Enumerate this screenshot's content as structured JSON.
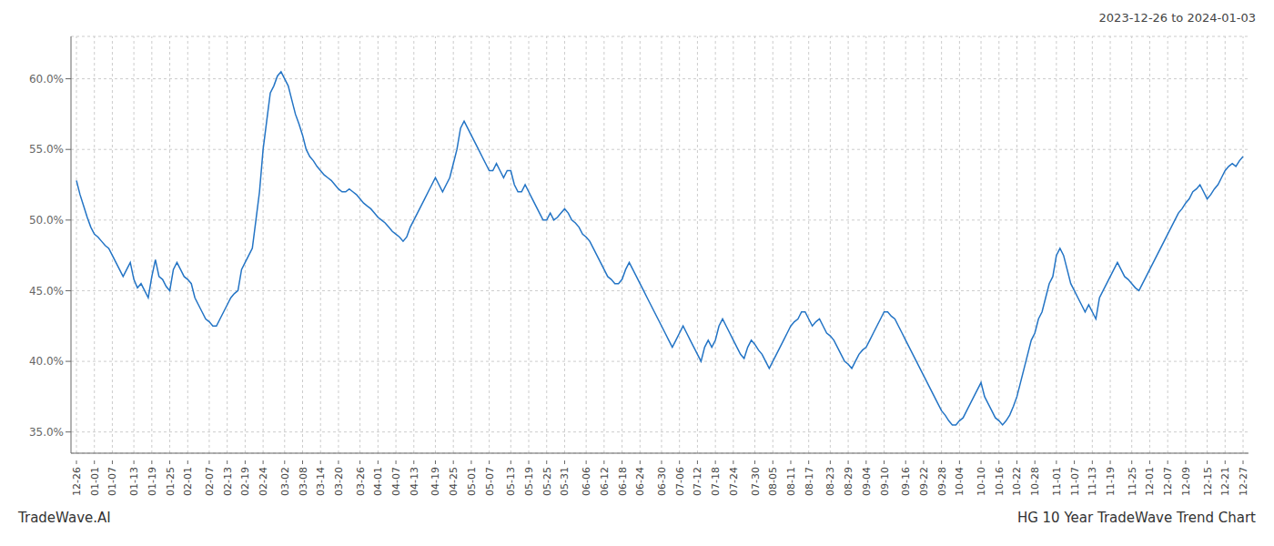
{
  "chart_data": {
    "type": "line",
    "title": "HG 10 Year TradeWave Trend Chart",
    "subtitle": "2023-12-26 to 2024-01-03",
    "annotations": [
      "TradeWave.AI"
    ],
    "color": "#2374c5",
    "grid": true,
    "ylim": [
      33.5,
      63.0
    ],
    "yticks": [
      {
        "value": 35.0,
        "label": "35.0%"
      },
      {
        "value": 40.0,
        "label": "40.0%"
      },
      {
        "value": 45.0,
        "label": "45.0%"
      },
      {
        "value": 50.0,
        "label": "50.0%"
      },
      {
        "value": 55.0,
        "label": "55.0%"
      },
      {
        "value": 60.0,
        "label": "60.0%"
      }
    ],
    "categories": [
      "12-26",
      null,
      null,
      null,
      null,
      "01-01",
      null,
      null,
      null,
      null,
      "01-07",
      null,
      null,
      null,
      null,
      null,
      "01-13",
      null,
      null,
      null,
      null,
      "01-19",
      null,
      null,
      null,
      null,
      "01-25",
      null,
      null,
      null,
      null,
      "02-01",
      null,
      null,
      null,
      null,
      null,
      "02-07",
      null,
      null,
      null,
      null,
      "02-13",
      null,
      null,
      null,
      null,
      "02-19",
      null,
      null,
      null,
      null,
      "02-24",
      null,
      null,
      null,
      null,
      null,
      "03-02",
      null,
      null,
      null,
      null,
      "03-08",
      null,
      null,
      null,
      null,
      "03-14",
      null,
      null,
      null,
      null,
      "03-20",
      null,
      null,
      null,
      null,
      null,
      "03-26",
      null,
      null,
      null,
      null,
      "04-01",
      null,
      null,
      null,
      null,
      "04-07",
      null,
      null,
      null,
      null,
      "04-13",
      null,
      null,
      null,
      null,
      null,
      "04-19",
      null,
      null,
      null,
      null,
      "04-25",
      null,
      null,
      null,
      null,
      "05-01",
      null,
      null,
      null,
      null,
      "05-07",
      null,
      null,
      null,
      null,
      null,
      "05-13",
      null,
      null,
      null,
      null,
      "05-19",
      null,
      null,
      null,
      null,
      "05-25",
      null,
      null,
      null,
      null,
      "05-31",
      null,
      null,
      null,
      null,
      null,
      "06-06",
      null,
      null,
      null,
      null,
      "06-12",
      null,
      null,
      null,
      null,
      "06-18",
      null,
      null,
      null,
      null,
      "06-24",
      null,
      null,
      null,
      null,
      null,
      "06-30",
      null,
      null,
      null,
      null,
      "07-06",
      null,
      null,
      null,
      null,
      "07-12",
      null,
      null,
      null,
      null,
      "07-18",
      null,
      null,
      null,
      null,
      "07-24",
      null,
      null,
      null,
      null,
      null,
      "07-30",
      null,
      null,
      null,
      null,
      "08-05",
      null,
      null,
      null,
      null,
      "08-11",
      null,
      null,
      null,
      null,
      "08-17",
      null,
      null,
      null,
      null,
      null,
      "08-23",
      null,
      null,
      null,
      null,
      "08-29",
      null,
      null,
      null,
      null,
      "09-04",
      null,
      null,
      null,
      null,
      "09-10",
      null,
      null,
      null,
      null,
      null,
      "09-16",
      null,
      null,
      null,
      null,
      "09-22",
      null,
      null,
      null,
      null,
      "09-28",
      null,
      null,
      null,
      null,
      "10-04",
      null,
      null,
      null,
      null,
      null,
      "10-10",
      null,
      null,
      null,
      null,
      "10-16",
      null,
      null,
      null,
      null,
      "10-22",
      null,
      null,
      null,
      null,
      "10-28",
      null,
      null,
      null,
      null,
      null,
      "11-01",
      null,
      null,
      null,
      null,
      "11-07",
      null,
      null,
      null,
      null,
      "11-13",
      null,
      null,
      null,
      null,
      "11-19",
      null,
      null,
      null,
      null,
      null,
      "11-25",
      null,
      null,
      null,
      null,
      "12-01",
      null,
      null,
      null,
      null,
      "12-07",
      null,
      null,
      null,
      null,
      "12-09",
      null,
      null,
      null,
      null,
      null,
      "12-15",
      null,
      null,
      null,
      null,
      "12-21",
      null,
      null,
      null,
      null,
      "12-27"
    ],
    "values": [
      52.8,
      51.8,
      51.0,
      50.2,
      49.5,
      49.0,
      48.8,
      48.5,
      48.2,
      48.0,
      47.5,
      47.0,
      46.5,
      46.0,
      46.5,
      47.0,
      45.8,
      45.2,
      45.5,
      45.0,
      44.5,
      46.0,
      47.2,
      46.0,
      45.8,
      45.3,
      45.0,
      46.5,
      47.0,
      46.5,
      46.0,
      45.8,
      45.5,
      44.5,
      44.0,
      43.5,
      43.0,
      42.8,
      42.5,
      42.5,
      43.0,
      43.5,
      44.0,
      44.5,
      44.8,
      45.0,
      46.5,
      47.0,
      47.5,
      48.0,
      50.0,
      52.0,
      55.0,
      57.0,
      59.0,
      59.5,
      60.2,
      60.5,
      60.0,
      59.5,
      58.5,
      57.5,
      56.8,
      56.0,
      55.0,
      54.5,
      54.2,
      53.8,
      53.5,
      53.2,
      53.0,
      52.8,
      52.5,
      52.2,
      52.0,
      52.0,
      52.2,
      52.0,
      51.8,
      51.5,
      51.2,
      51.0,
      50.8,
      50.5,
      50.2,
      50.0,
      49.8,
      49.5,
      49.2,
      49.0,
      48.8,
      48.5,
      48.8,
      49.5,
      50.0,
      50.5,
      51.0,
      51.5,
      52.0,
      52.5,
      53.0,
      52.5,
      52.0,
      52.5,
      53.0,
      54.0,
      55.0,
      56.5,
      57.0,
      56.5,
      56.0,
      55.5,
      55.0,
      54.5,
      54.0,
      53.5,
      53.5,
      54.0,
      53.5,
      53.0,
      53.5,
      53.5,
      52.5,
      52.0,
      52.0,
      52.5,
      52.0,
      51.5,
      51.0,
      50.5,
      50.0,
      50.0,
      50.5,
      50.0,
      50.2,
      50.5,
      50.8,
      50.5,
      50.0,
      49.8,
      49.5,
      49.0,
      48.8,
      48.5,
      48.0,
      47.5,
      47.0,
      46.5,
      46.0,
      45.8,
      45.5,
      45.5,
      45.8,
      46.5,
      47.0,
      46.5,
      46.0,
      45.5,
      45.0,
      44.5,
      44.0,
      43.5,
      43.0,
      42.5,
      42.0,
      41.5,
      41.0,
      41.5,
      42.0,
      42.5,
      42.0,
      41.5,
      41.0,
      40.5,
      40.0,
      41.0,
      41.5,
      41.0,
      41.5,
      42.5,
      43.0,
      42.5,
      42.0,
      41.5,
      41.0,
      40.5,
      40.2,
      41.0,
      41.5,
      41.2,
      40.8,
      40.5,
      40.0,
      39.5,
      40.0,
      40.5,
      41.0,
      41.5,
      42.0,
      42.5,
      42.8,
      43.0,
      43.5,
      43.5,
      43.0,
      42.5,
      42.8,
      43.0,
      42.5,
      42.0,
      41.8,
      41.5,
      41.0,
      40.5,
      40.0,
      39.8,
      39.5,
      40.0,
      40.5,
      40.8,
      41.0,
      41.5,
      42.0,
      42.5,
      43.0,
      43.5,
      43.5,
      43.2,
      43.0,
      42.5,
      42.0,
      41.5,
      41.0,
      40.5,
      40.0,
      39.5,
      39.0,
      38.5,
      38.0,
      37.5,
      37.0,
      36.5,
      36.2,
      35.8,
      35.5,
      35.5,
      35.8,
      36.0,
      36.5,
      37.0,
      37.5,
      38.0,
      38.5,
      37.5,
      37.0,
      36.5,
      36.0,
      35.8,
      35.5,
      35.8,
      36.2,
      36.8,
      37.5,
      38.5,
      39.5,
      40.5,
      41.5,
      42.0,
      43.0,
      43.5,
      44.5,
      45.5,
      46.0,
      47.5,
      48.0,
      47.5,
      46.5,
      45.5,
      45.0,
      44.5,
      44.0,
      43.5,
      44.0,
      43.5,
      43.0,
      44.5,
      45.0,
      45.5,
      46.0,
      46.5,
      47.0,
      46.5,
      46.0,
      45.8,
      45.5,
      45.2,
      45.0,
      45.5,
      46.0,
      46.5,
      47.0,
      47.5,
      48.0,
      48.5,
      49.0,
      49.5,
      50.0,
      50.5,
      50.8,
      51.2,
      51.5,
      52.0,
      52.2,
      52.5,
      52.0,
      51.5,
      51.8,
      52.2,
      52.5,
      53.0,
      53.5,
      53.8,
      54.0,
      53.8,
      54.2,
      54.5
    ]
  }
}
